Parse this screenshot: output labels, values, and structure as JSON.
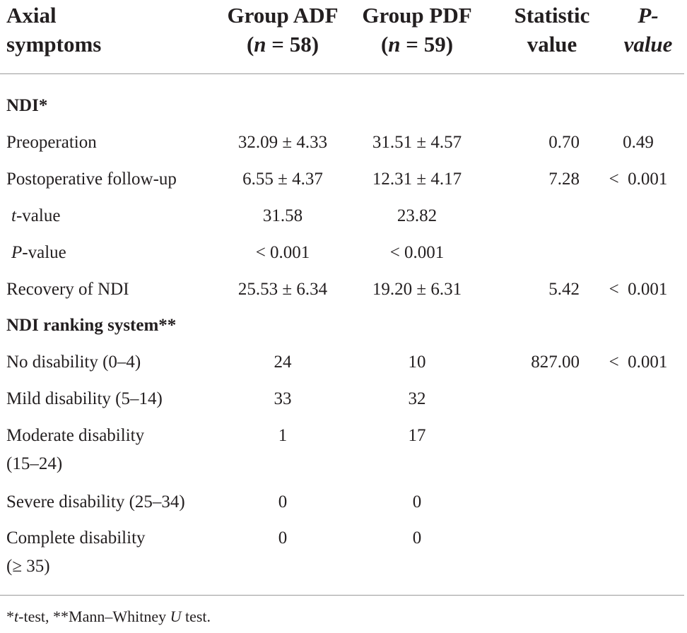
{
  "table": {
    "headers": {
      "axial": [
        "Axial",
        "symptoms"
      ],
      "adf_line1": "Group ADF",
      "adf_line2_prefix": "(",
      "adf_n": "n",
      "adf_line2_suffix": " = 58)",
      "pdf_line1": "Group PDF",
      "pdf_line2_prefix": "(",
      "pdf_n": "n",
      "pdf_line2_suffix": " = 59)",
      "stat": [
        "Statistic",
        "value"
      ],
      "p": [
        "P-",
        "value"
      ]
    },
    "sections": {
      "ndi": "NDI*",
      "ndi_ranking": "NDI ranking system**"
    },
    "rows": {
      "preoperation": {
        "label": "Preoperation",
        "adf": "32.09 ± 4.33",
        "pdf": "31.51 ± 4.57",
        "stat": "0.70",
        "p": "0.49"
      },
      "postop": {
        "label": "Postoperative follow-up",
        "adf": "6.55 ± 4.37",
        "pdf": "12.31 ± 4.17",
        "stat": "7.28",
        "p": "<  0.001"
      },
      "tvalue": {
        "label_italic": "t",
        "label_rest": "-value",
        "adf": "31.58",
        "pdf": "23.82"
      },
      "pvalue": {
        "label_italic": "P",
        "label_rest": "-value",
        "adf": "< 0.001",
        "pdf": "< 0.001"
      },
      "recovery": {
        "label": "Recovery of NDI",
        "adf": "25.53 ± 6.34",
        "pdf": "19.20 ± 6.31",
        "stat": "5.42",
        "p": "<  0.001"
      },
      "no_disability": {
        "label": "No disability (0–4)",
        "adf": "24",
        "pdf": "10",
        "stat": "827.00",
        "p": "<  0.001"
      },
      "mild": {
        "label": "Mild disability (5–14)",
        "adf": "33",
        "pdf": "32"
      },
      "moderate": {
        "label": [
          "Moderate disability",
          "(15–24)"
        ],
        "adf": "1",
        "pdf": "17"
      },
      "severe": {
        "label": "Severe disability (25–34)",
        "adf": "0",
        "pdf": "0"
      },
      "complete": {
        "label": [
          "Complete disability",
          "(≥ 35)"
        ],
        "adf": "0",
        "pdf": "0"
      }
    },
    "footnote": {
      "star1": "*",
      "t": "t",
      "part1": "-test, **Mann–Whitney ",
      "u": "U",
      "part2": " test."
    }
  }
}
